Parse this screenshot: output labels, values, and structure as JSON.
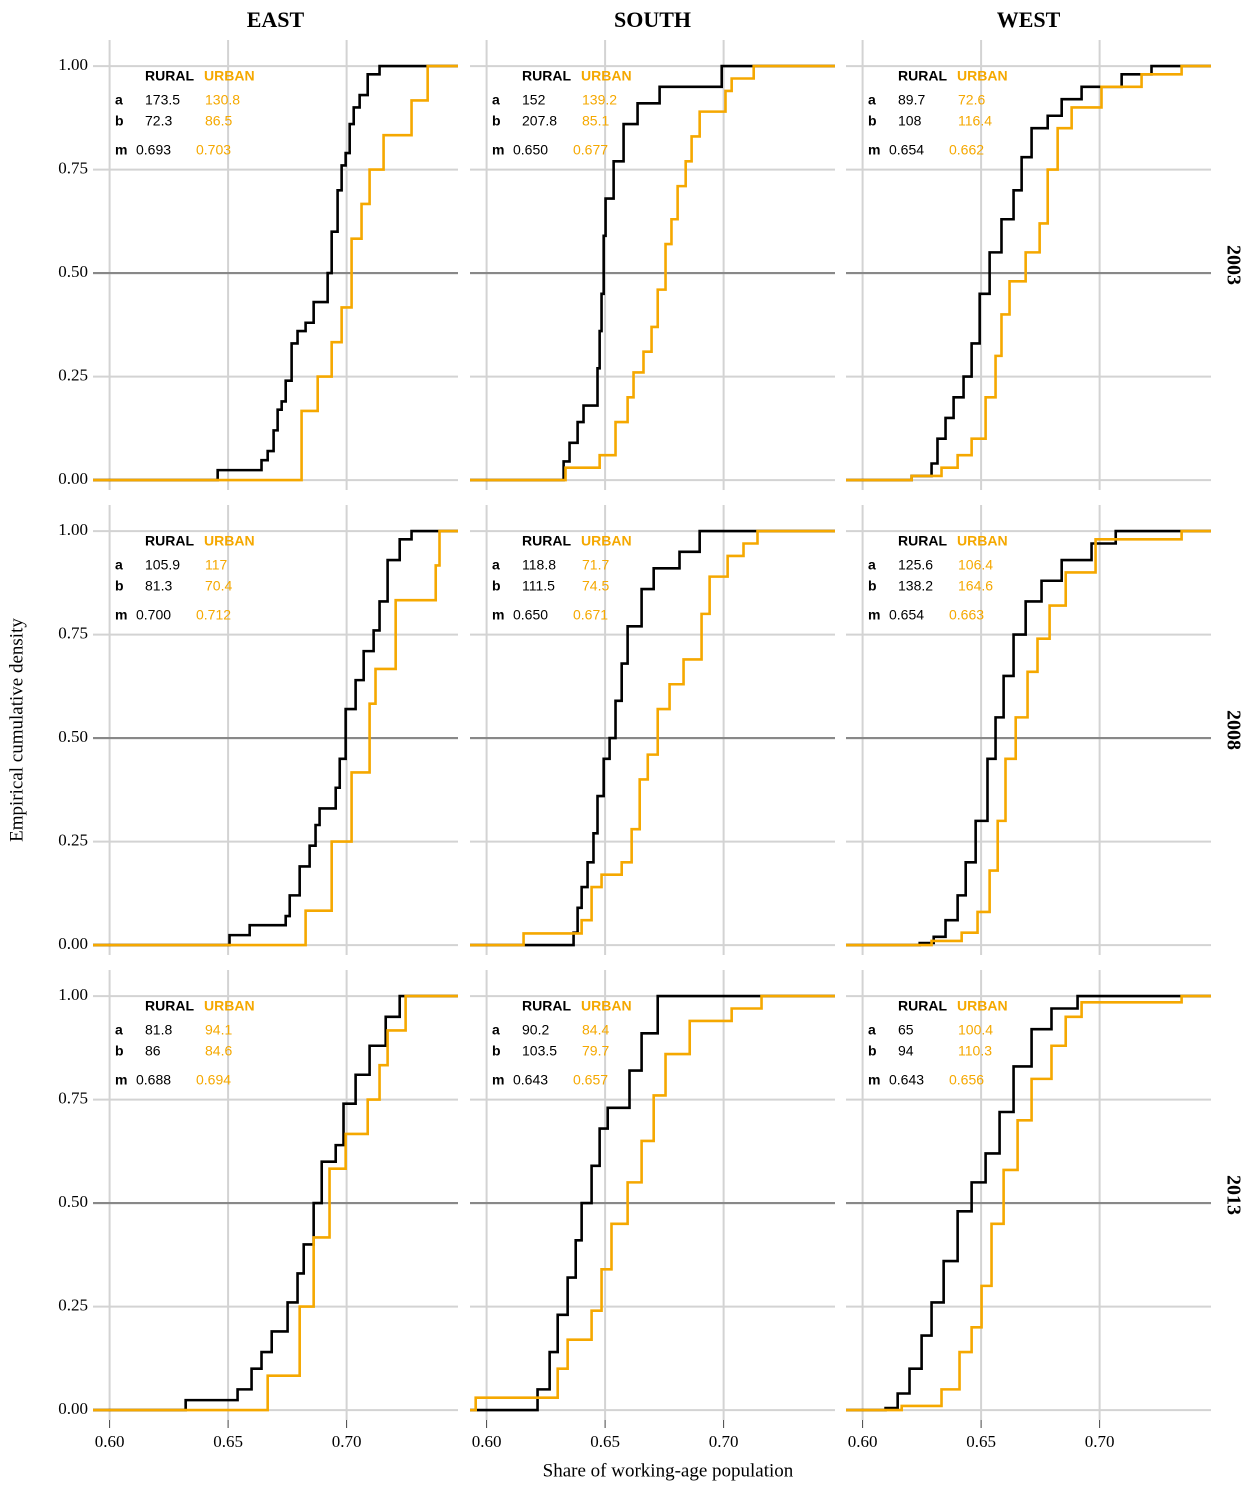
{
  "chart_data": {
    "type": "step",
    "xlabel": "Share of working-age population",
    "ylabel": "Empirical cumulative density",
    "columns": [
      "EAST",
      "SOUTH",
      "WEST"
    ],
    "rows": [
      "2003",
      "2008",
      "2013"
    ],
    "xlim": [
      0.593,
      0.747
    ],
    "ylim": [
      -0.024,
      1.063
    ],
    "xticks": [
      {
        "value": 0.6,
        "label": "0.60"
      },
      {
        "value": 0.65,
        "label": "0.65"
      },
      {
        "value": 0.7,
        "label": "0.70"
      }
    ],
    "yticks": [
      {
        "value": 0,
        "label": "0.00"
      },
      {
        "value": 0.25,
        "label": "0.25"
      },
      {
        "value": 0.5,
        "label": "0.50"
      },
      {
        "value": 0.75,
        "label": "0.75"
      },
      {
        "value": 1,
        "label": "1.00"
      }
    ],
    "grid": true,
    "reference_line": 0.5,
    "stat_names": [
      "a",
      "b",
      "m"
    ],
    "panels": [
      {
        "series": [
          {
            "name": "RURAL",
            "color": "#000000",
            "x": [
              0.6456,
              0.6641,
              0.6667,
              0.6692,
              0.6709,
              0.6726,
              0.6743,
              0.6768,
              0.6793,
              0.6827,
              0.6861,
              0.692,
              0.6937,
              0.6962,
              0.6979,
              0.6996,
              0.7013,
              0.703,
              0.7055,
              0.7089,
              0.7139
            ],
            "y": [
              0.024,
              0.048,
              0.07,
              0.12,
              0.17,
              0.19,
              0.24,
              0.33,
              0.36,
              0.38,
              0.43,
              0.5,
              0.6,
              0.7,
              0.76,
              0.79,
              0.86,
              0.9,
              0.93,
              0.98,
              1.0
            ],
            "stats": [
              173.5,
              72.3,
              0.693
            ]
          },
          {
            "name": "URBAN",
            "color": "#f5a800",
            "x": [
              0.681,
              0.6878,
              0.6937,
              0.6979,
              0.7021,
              0.7063,
              0.7097,
              0.7156,
              0.7274,
              0.7342
            ],
            "y": [
              0.167,
              0.25,
              0.333,
              0.417,
              0.583,
              0.667,
              0.75,
              0.833,
              0.917,
              1.0
            ],
            "stats": [
              130.8,
              86.5,
              0.703
            ]
          }
        ]
      },
      {
        "series": [
          {
            "name": "RURAL",
            "color": "#000000",
            "x": [
              0.6325,
              0.635,
              0.6384,
              0.6409,
              0.6468,
              0.6477,
              0.6485,
              0.6494,
              0.6502,
              0.6536,
              0.6578,
              0.6637,
              0.673,
              0.6992
            ],
            "y": [
              0.045,
              0.09,
              0.14,
              0.18,
              0.27,
              0.36,
              0.45,
              0.59,
              0.68,
              0.77,
              0.86,
              0.91,
              0.95,
              1.0
            ],
            "stats": [
              152,
              207.8,
              {
                "value": 0.65,
                "label": "0.650"
              }
            ]
          },
          {
            "name": "URBAN",
            "color": "#f5a800",
            "x": [
              0.6333,
              0.6477,
              0.6544,
              0.6595,
              0.662,
              0.6662,
              0.6696,
              0.6722,
              0.6755,
              0.678,
              0.6806,
              0.684,
              0.6865,
              0.6899,
              0.7008,
              0.7034,
              0.7127
            ],
            "y": [
              0.03,
              0.06,
              0.14,
              0.2,
              0.26,
              0.31,
              0.37,
              0.46,
              0.57,
              0.63,
              0.71,
              0.77,
              0.83,
              0.89,
              0.94,
              0.97,
              1.0
            ],
            "stats": [
              139.2,
              85.1,
              0.677
            ]
          }
        ]
      },
      {
        "series": [
          {
            "name": "RURAL",
            "color": "#000000",
            "x": [
              0.6207,
              0.6291,
              0.6316,
              0.635,
              0.6384,
              0.6426,
              0.646,
              0.6494,
              0.6536,
              0.6586,
              0.6637,
              0.6671,
              0.6713,
              0.6781,
              0.684,
              0.6924,
              0.7093,
              0.7219
            ],
            "y": [
              0.01,
              0.04,
              0.1,
              0.15,
              0.2,
              0.25,
              0.33,
              0.45,
              0.55,
              0.63,
              0.7,
              0.78,
              0.85,
              0.88,
              0.92,
              0.95,
              0.98,
              1.0
            ],
            "stats": [
              89.7,
              108,
              0.654
            ]
          },
          {
            "name": "URBAN",
            "color": "#f5a800",
            "x": [
              0.6207,
              0.6333,
              0.6401,
              0.646,
              0.6519,
              0.6561,
              0.6586,
              0.662,
              0.6688,
              0.6747,
              0.6781,
              0.6823,
              0.6882,
              0.7008,
              0.7177,
              0.7346
            ],
            "y": [
              0.01,
              0.03,
              0.06,
              0.1,
              0.2,
              0.3,
              0.4,
              0.48,
              0.55,
              0.62,
              0.75,
              0.85,
              0.9,
              0.95,
              0.98,
              1.0
            ],
            "stats": [
              72.6,
              116.4,
              0.662
            ]
          }
        ]
      },
      {
        "series": [
          {
            "name": "RURAL",
            "color": "#000000",
            "x": [
              0.6506,
              0.6591,
              0.6743,
              0.676,
              0.6802,
              0.6844,
              0.6869,
              0.6886,
              0.6954,
              0.6971,
              0.6996,
              0.7038,
              0.7072,
              0.7114,
              0.7139,
              0.7173,
              0.7224,
              0.7274
            ],
            "y": [
              0.024,
              0.048,
              0.07,
              0.12,
              0.19,
              0.24,
              0.29,
              0.33,
              0.38,
              0.45,
              0.57,
              0.64,
              0.71,
              0.76,
              0.83,
              0.93,
              0.98,
              1.0
            ],
            "stats": [
              105.9,
              81.3,
              {
                "value": 0.7,
                "label": "0.700"
              }
            ]
          },
          {
            "name": "URBAN",
            "color": "#f5a800",
            "x": [
              0.6827,
              0.6937,
              0.7021,
              0.7097,
              0.7122,
              0.7207,
              0.7376,
              0.7392
            ],
            "y": [
              0.083,
              0.25,
              0.417,
              0.583,
              0.667,
              0.833,
              0.917,
              1.0
            ],
            "stats": [
              117,
              70.4,
              0.712
            ]
          }
        ]
      },
      {
        "series": [
          {
            "name": "RURAL",
            "color": "#000000",
            "x": [
              0.6367,
              0.6384,
              0.6401,
              0.6426,
              0.6451,
              0.6468,
              0.6494,
              0.6519,
              0.6544,
              0.657,
              0.6595,
              0.6654,
              0.6705,
              0.6814,
              0.6899
            ],
            "y": [
              0.03,
              0.09,
              0.14,
              0.2,
              0.27,
              0.36,
              0.45,
              0.5,
              0.59,
              0.68,
              0.77,
              0.86,
              0.91,
              0.95,
              1.0
            ],
            "stats": [
              118.8,
              111.5,
              {
                "value": 0.65,
                "label": "0.650"
              }
            ]
          },
          {
            "name": "URBAN",
            "color": "#f5a800",
            "x": [
              0.6156,
              0.6401,
              0.6443,
              0.6485,
              0.657,
              0.6612,
              0.6646,
              0.668,
              0.6722,
              0.6772,
              0.6831,
              0.6907,
              0.6941,
              0.7017,
              0.7084,
              0.7143
            ],
            "y": [
              0.028,
              0.06,
              0.14,
              0.17,
              0.2,
              0.28,
              0.4,
              0.46,
              0.57,
              0.63,
              0.69,
              0.8,
              0.89,
              0.94,
              0.97,
              1.0
            ],
            "stats": [
              71.7,
              74.5,
              0.671
            ]
          }
        ]
      },
      {
        "series": [
          {
            "name": "RURAL",
            "color": "#000000",
            "x": [
              0.6241,
              0.63,
              0.635,
              0.6401,
              0.6435,
              0.6477,
              0.6527,
              0.6561,
              0.6595,
              0.6637,
              0.6688,
              0.6755,
              0.684,
              0.6966,
              0.7068
            ],
            "y": [
              0.005,
              0.02,
              0.06,
              0.12,
              0.2,
              0.3,
              0.45,
              0.55,
              0.65,
              0.75,
              0.83,
              0.88,
              0.93,
              0.97,
              1.0
            ],
            "stats": [
              125.6,
              138.2,
              0.654
            ]
          },
          {
            "name": "URBAN",
            "color": "#f5a800",
            "x": [
              0.6291,
              0.6418,
              0.6485,
              0.6536,
              0.657,
              0.6603,
              0.6646,
              0.6696,
              0.6738,
              0.6789,
              0.6857,
              0.6983,
              0.7346
            ],
            "y": [
              0.01,
              0.03,
              0.08,
              0.18,
              0.3,
              0.45,
              0.55,
              0.66,
              0.74,
              0.82,
              0.9,
              0.98,
              1.0
            ],
            "stats": [
              106.4,
              164.6,
              0.663
            ]
          }
        ]
      },
      {
        "series": [
          {
            "name": "RURAL",
            "color": "#000000",
            "x": [
              0.6321,
              0.654,
              0.6599,
              0.6641,
              0.6684,
              0.6751,
              0.6793,
              0.6819,
              0.6861,
              0.6895,
              0.6954,
              0.6987,
              0.7038,
              0.7097,
              0.7165,
              0.7224
            ],
            "y": [
              0.024,
              0.05,
              0.1,
              0.14,
              0.19,
              0.26,
              0.33,
              0.4,
              0.5,
              0.6,
              0.64,
              0.74,
              0.81,
              0.88,
              0.95,
              1.0
            ],
            "stats": [
              81.8,
              86,
              0.688
            ]
          },
          {
            "name": "URBAN",
            "color": "#f5a800",
            "x": [
              0.6667,
              0.6802,
              0.6861,
              0.6928,
              0.6996,
              0.7089,
              0.7139,
              0.7173,
              0.7249
            ],
            "y": [
              0.083,
              0.25,
              0.417,
              0.583,
              0.667,
              0.75,
              0.833,
              0.917,
              1.0
            ],
            "stats": [
              94.1,
              84.6,
              0.694
            ]
          }
        ]
      },
      {
        "series": [
          {
            "name": "RURAL",
            "color": "#000000",
            "x": [
              0.6215,
              0.6266,
              0.63,
              0.6342,
              0.6376,
              0.6401,
              0.6443,
              0.6477,
              0.6511,
              0.6603,
              0.6654,
              0.6722
            ],
            "y": [
              0.05,
              0.14,
              0.23,
              0.32,
              0.41,
              0.5,
              0.59,
              0.68,
              0.73,
              0.82,
              0.91,
              1.0
            ],
            "stats": [
              90.2,
              103.5,
              0.643
            ]
          },
          {
            "name": "URBAN",
            "color": "#f5a800",
            "x": [
              0.5954,
              0.63,
              0.6342,
              0.6443,
              0.6485,
              0.6527,
              0.6595,
              0.6654,
              0.6705,
              0.6755,
              0.6857,
              0.7034,
              0.716
            ],
            "y": [
              0.03,
              0.1,
              0.17,
              0.24,
              0.34,
              0.45,
              0.55,
              0.65,
              0.76,
              0.86,
              0.94,
              0.97,
              1.0
            ],
            "stats": [
              84.4,
              79.7,
              0.657
            ]
          }
        ]
      },
      {
        "series": [
          {
            "name": "RURAL",
            "color": "#000000",
            "x": [
              0.6097,
              0.6148,
              0.6198,
              0.6249,
              0.6291,
              0.6342,
              0.6401,
              0.646,
              0.6519,
              0.6578,
              0.6637,
              0.6713,
              0.6797,
              0.6907
            ],
            "y": [
              0.005,
              0.04,
              0.1,
              0.18,
              0.26,
              0.36,
              0.48,
              0.55,
              0.62,
              0.72,
              0.83,
              0.92,
              0.97,
              1.0
            ],
            "stats": [
              65,
              94,
              0.643
            ]
          },
          {
            "name": "URBAN",
            "color": "#f5a800",
            "x": [
              0.6165,
              0.6333,
              0.6409,
              0.646,
              0.6502,
              0.6544,
              0.6595,
              0.6654,
              0.6713,
              0.6797,
              0.6857,
              0.6924,
              0.7346
            ],
            "y": [
              0.01,
              0.05,
              0.14,
              0.2,
              0.3,
              0.45,
              0.58,
              0.7,
              0.8,
              0.88,
              0.95,
              0.985,
              1.0
            ],
            "stats": [
              100.4,
              110.3,
              0.656
            ]
          }
        ]
      }
    ]
  }
}
